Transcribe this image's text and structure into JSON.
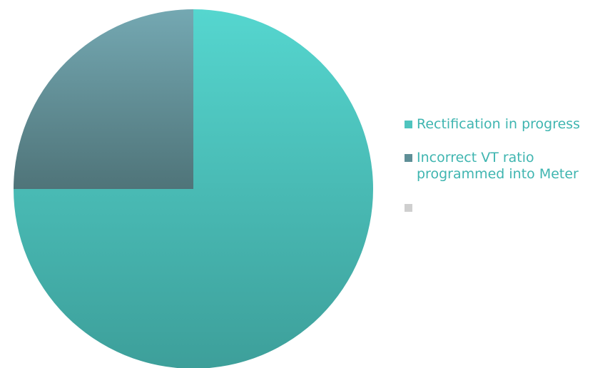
{
  "chart_data": {
    "type": "pie",
    "title": "",
    "categories": [
      "Rectification in progress",
      "Incorrect VT ratio\nprogrammed into Meter",
      ""
    ],
    "values": [
      75,
      25,
      0
    ],
    "colors": [
      "#4fc4be",
      "#5f8f97",
      "#cfcfcf"
    ],
    "legend": {
      "position": "right",
      "text_color": "#3fb5b0"
    }
  }
}
